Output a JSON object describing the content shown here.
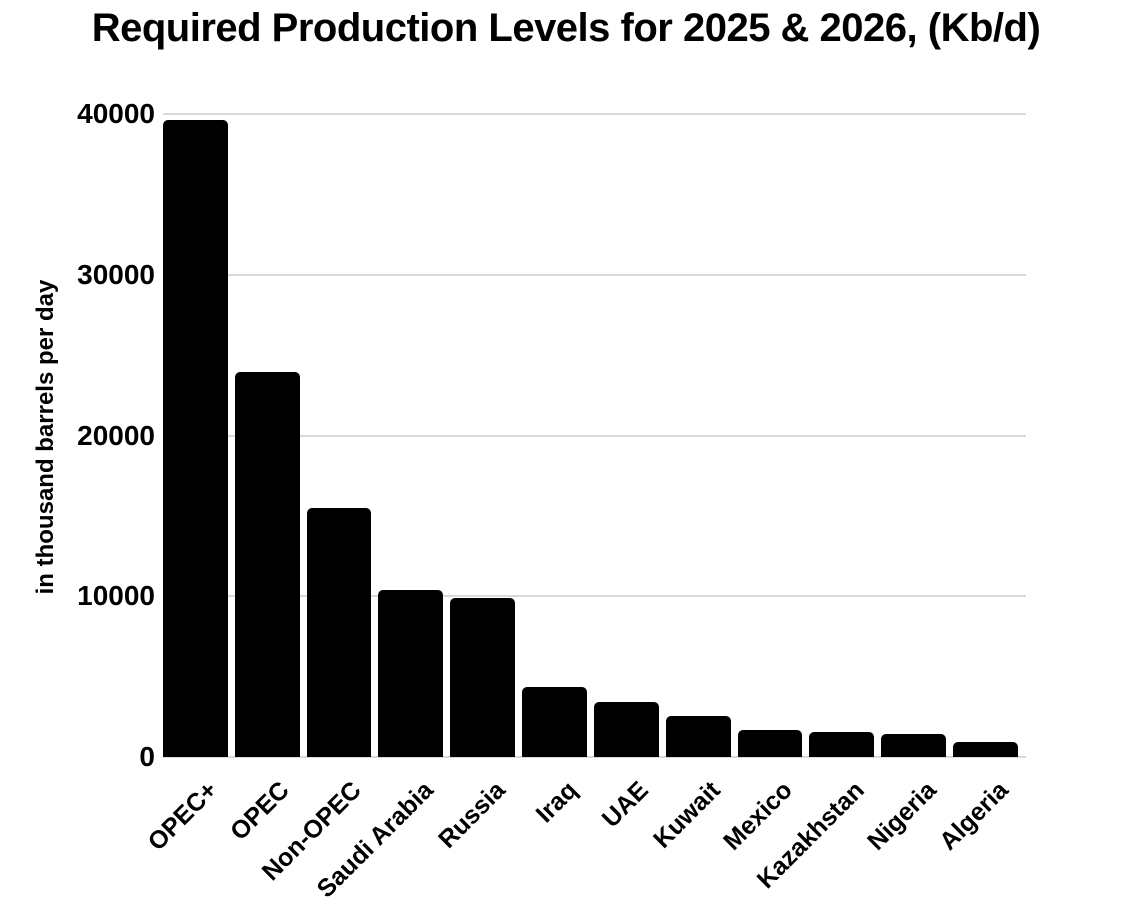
{
  "page": {
    "background_color": "#ffffff",
    "text_color": "#000000"
  },
  "chart_data": {
    "type": "bar",
    "title": "Required Production Levels for 2025 & 2026, (Kb/d)",
    "ylabel": "in thousand barrels per day",
    "xlabel": "",
    "categories": [
      "OPEC+",
      "OPEC",
      "Non-OPEC",
      "Saudi Arabia",
      "Russia",
      "Iraq",
      "UAE",
      "Kuwait",
      "Mexico",
      "Kazakhstan",
      "Nigeria",
      "Algeria"
    ],
    "values": [
      39650,
      23950,
      15500,
      10400,
      9900,
      4350,
      3450,
      2550,
      1700,
      1550,
      1450,
      950
    ],
    "ylim": [
      0,
      40000
    ],
    "yticks": [
      0,
      10000,
      20000,
      30000,
      40000
    ],
    "grid": true,
    "legend": false,
    "bar_color": "#000000",
    "gridline_color": "#d9d9d9",
    "label_rotation_deg": 45
  }
}
